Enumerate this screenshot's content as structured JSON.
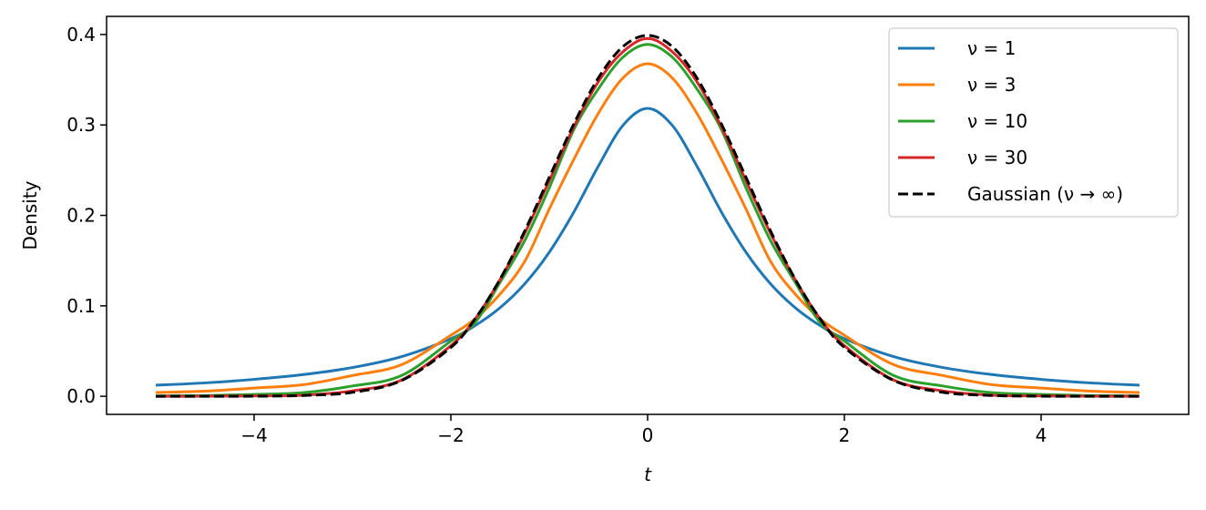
{
  "chart_data": {
    "type": "line",
    "title": "",
    "xlabel": "t",
    "ylabel": "Density",
    "xlim": [
      -5.5,
      5.5
    ],
    "ylim": [
      -0.02,
      0.42
    ],
    "grid": false,
    "legend_position": "top-right",
    "x_ticks": [
      -4,
      -2,
      0,
      2,
      4
    ],
    "x_tick_labels": [
      "−4",
      "−2",
      "0",
      "2",
      "4"
    ],
    "y_ticks": [
      0.0,
      0.1,
      0.2,
      0.3,
      0.4
    ],
    "y_tick_labels": [
      "0.0",
      "0.1",
      "0.2",
      "0.3",
      "0.4"
    ],
    "x": [
      -5,
      -4.5,
      -4,
      -3.5,
      -3,
      -2.5,
      -2,
      -1.75,
      -1.5,
      -1.25,
      -1,
      -0.75,
      -0.5,
      -0.25,
      0,
      0.25,
      0.5,
      0.75,
      1,
      1.25,
      1.5,
      1.75,
      2,
      2.5,
      3,
      3.5,
      4,
      4.5,
      5
    ],
    "series": [
      {
        "name": "ν = 1",
        "color": "#1f77b4",
        "dash": "solid",
        "values": [
          0.0122,
          0.0148,
          0.0187,
          0.024,
          0.0318,
          0.0439,
          0.0637,
          0.0784,
          0.0979,
          0.1242,
          0.1592,
          0.2037,
          0.2546,
          0.2996,
          0.3183,
          0.2996,
          0.2546,
          0.2037,
          0.1592,
          0.1242,
          0.0979,
          0.0784,
          0.0637,
          0.0439,
          0.0318,
          0.024,
          0.0187,
          0.0148,
          0.0122
        ]
      },
      {
        "name": "ν = 3",
        "color": "#ff7f0e",
        "dash": "solid",
        "values": [
          0.0042,
          0.0057,
          0.0091,
          0.0128,
          0.023,
          0.035,
          0.0675,
          0.086,
          0.113,
          0.149,
          0.207,
          0.262,
          0.313,
          0.352,
          0.3676,
          0.352,
          0.313,
          0.262,
          0.207,
          0.149,
          0.113,
          0.086,
          0.0675,
          0.035,
          0.023,
          0.0128,
          0.0091,
          0.0057,
          0.0042
        ]
      },
      {
        "name": "ν = 10",
        "color": "#2ca02c",
        "dash": "solid",
        "values": [
          0.0004,
          0.0008,
          0.002,
          0.004,
          0.0114,
          0.023,
          0.0611,
          0.082,
          0.126,
          0.172,
          0.2304,
          0.295,
          0.34,
          0.375,
          0.3891,
          0.375,
          0.34,
          0.295,
          0.2304,
          0.172,
          0.126,
          0.082,
          0.0611,
          0.023,
          0.0114,
          0.004,
          0.002,
          0.0008,
          0.0004
        ]
      },
      {
        "name": "ν = 30",
        "color": "#d62728",
        "dash": "solid",
        "values": [
          0.0,
          0.0001,
          0.0004,
          0.0012,
          0.006,
          0.018,
          0.056,
          0.086,
          0.129,
          0.18,
          0.2382,
          0.298,
          0.348,
          0.381,
          0.3956,
          0.381,
          0.348,
          0.298,
          0.2382,
          0.18,
          0.129,
          0.086,
          0.056,
          0.018,
          0.006,
          0.0012,
          0.0004,
          0.0001,
          0.0
        ]
      },
      {
        "name": "Gaussian (ν → ∞)",
        "color": "#000000",
        "dash": "dashed",
        "values": [
          0.0,
          0.0,
          0.0001,
          0.0009,
          0.0044,
          0.0175,
          0.054,
          0.0863,
          0.1295,
          0.1826,
          0.242,
          0.3011,
          0.3521,
          0.3867,
          0.3989,
          0.3867,
          0.3521,
          0.3011,
          0.242,
          0.1826,
          0.1295,
          0.0863,
          0.054,
          0.0175,
          0.0044,
          0.0009,
          0.0001,
          0.0,
          0.0
        ]
      }
    ]
  }
}
